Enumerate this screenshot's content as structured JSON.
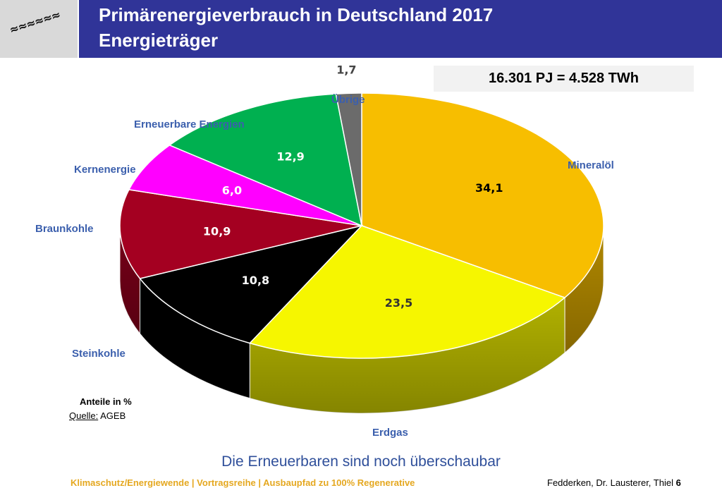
{
  "header": {
    "title_line1": "Primärenergieverbrauch in Deutschland 2017",
    "title_line2": "Energieträger",
    "logo_marks": "≈≈≈≈≈≈"
  },
  "total_label": "16.301 PJ = 4.528 TWh",
  "chart_data": {
    "type": "pie",
    "unit": "%",
    "categories": [
      "Mineralöl",
      "Erdgas",
      "Steinkohle",
      "Braunkohle",
      "Kernenergie",
      "Erneuerbare Energien",
      "Übrige"
    ],
    "values": [
      34.1,
      23.5,
      10.8,
      10.9,
      6.0,
      12.9,
      1.7
    ],
    "value_labels": [
      "34,1",
      "23,5",
      "10,8",
      "10,9",
      "6,0",
      "12,9",
      "1,7"
    ],
    "colors": [
      "#f7be00",
      "#f6f600",
      "#000000",
      "#a40021",
      "#ff00ff",
      "#00b050",
      "#6b6b6b"
    ],
    "value_label_colors": [
      "#000000",
      "#333333",
      "#ffffff",
      "#ffffff",
      "#ffffff",
      "#ffffff",
      "#444444"
    ],
    "legend": "none"
  },
  "notes": {
    "share_label": "Anteile in %",
    "source_prefix": "Quelle:",
    "source_value": "AGEB"
  },
  "subtitle": "Die Erneuerbaren sind noch überschaubar",
  "footer": {
    "left": "Klimaschutz/Energiewende | Vortragsreihe | Ausbaupfad zu 100% Regenerative",
    "right_text": "Fedderken, Dr. Lausterer, Thiel",
    "page_number": "6"
  }
}
